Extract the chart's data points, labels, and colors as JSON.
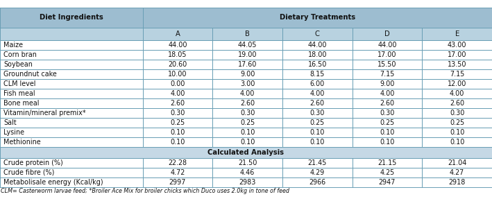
{
  "col_header_row1_left": "Diet Ingredients",
  "col_header_row1_right": "Dietary Treatments",
  "col_header_row2": [
    "A",
    "B",
    "C",
    "D",
    "E"
  ],
  "rows": [
    [
      "Maize",
      "44.00",
      "44.05",
      "44.00",
      "44.00",
      "43.00"
    ],
    [
      "Corn bran",
      "18.05",
      "19.00",
      "18.00",
      "17.00",
      "17.00"
    ],
    [
      "Soybean",
      "20.60",
      "17.60",
      "16.50",
      "15.50",
      "13.50"
    ],
    [
      "Groundnut cake",
      "10.00",
      "9.00",
      "8.15",
      "7.15",
      "7.15"
    ],
    [
      "CLM level",
      "0.00",
      "3.00",
      "6.00",
      "9.00",
      "12.00"
    ],
    [
      "Fish meal",
      "4.00",
      "4.00",
      "4.00",
      "4.00",
      "4.00"
    ],
    [
      "Bone meal",
      "2.60",
      "2.60",
      "2.60",
      "2.60",
      "2.60"
    ],
    [
      "Vitamin/mineral premix*",
      "0.30",
      "0.30",
      "0.30",
      "0.30",
      "0.30"
    ],
    [
      "Salt",
      "0.25",
      "0.25",
      "0.25",
      "0.25",
      "0.25"
    ],
    [
      "Lysine",
      "0.10",
      "0.10",
      "0.10",
      "0.10",
      "0.10"
    ],
    [
      "Methionine",
      "0.10",
      "0.10",
      "0.10",
      "0.10",
      "0.10"
    ]
  ],
  "calc_header": "Calculated Analysis",
  "calc_rows": [
    [
      "Crude protein (%)",
      "22.28",
      "21.50",
      "21.45",
      "21.15",
      "21.04"
    ],
    [
      "Crude fibre (%)",
      "4.72",
      "4.46",
      "4.29",
      "4.25",
      "4.27"
    ],
    [
      "Metabolisale energy (Kcal/kg)",
      "2997",
      "2983",
      "2966",
      "2947",
      "2918"
    ]
  ],
  "footnote": "CLM= Casterworm larvae feed; *Broiler Ace Mix for broiler chicks which Duco uses 2.0kg in tone of feed",
  "header_bg": "#9dbdd0",
  "subheader_bg": "#b8d2e0",
  "calc_header_bg": "#c5d8e5",
  "row_bg_white": "#ffffff",
  "border_color": "#6a9fb5",
  "text_color": "#111111",
  "font_size": 7.2,
  "footnote_fontsize": 5.8
}
